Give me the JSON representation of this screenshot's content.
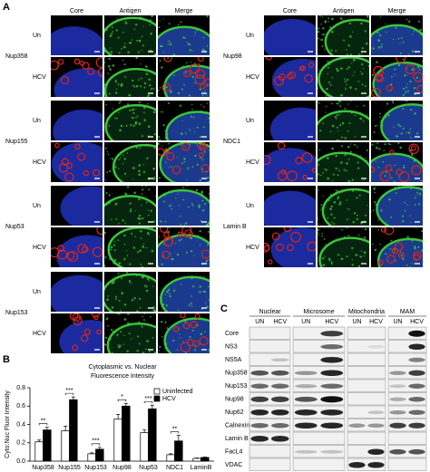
{
  "panel_labels": [
    "A",
    "B",
    "C"
  ],
  "panel_a": {
    "columns": [
      "Core",
      "Antigen",
      "Merge"
    ],
    "left": [
      {
        "name": "Nup358",
        "rows": [
          "Un",
          "HCV"
        ]
      },
      {
        "name": "Nup155",
        "rows": [
          "Un",
          "HCV"
        ]
      },
      {
        "name": "Nup53",
        "rows": [
          "Un",
          "HCV"
        ]
      },
      {
        "name": "Nup153",
        "rows": [
          "Un",
          "HCV"
        ]
      }
    ],
    "right": [
      {
        "name": "Nup98",
        "rows": [
          "Un",
          "HCV"
        ]
      },
      {
        "name": "NDC1",
        "rows": [
          "Un",
          "HCV"
        ]
      },
      {
        "name": "Lamin B",
        "rows": [
          "Un",
          "HCV"
        ]
      }
    ]
  },
  "chart_data": {
    "type": "bar",
    "title": [
      "Cytoplasmic vs. Nuclear",
      "Fluorescence Intensity"
    ],
    "y_label": "Cyto:Nuc Fluor Intensity",
    "categories": [
      "Nup358",
      "Nup155",
      "Nup153",
      "Nup98",
      "Nup53",
      "NDC1",
      "LaminB"
    ],
    "series": [
      {
        "name": "Uninfected",
        "color": "#ffffff",
        "values": [
          0.21,
          0.33,
          0.08,
          0.46,
          0.31,
          0.07,
          0.03
        ],
        "errors": [
          0.02,
          0.05,
          0.01,
          0.05,
          0.03,
          0.01,
          0.005
        ]
      },
      {
        "name": "HCV",
        "color": "#000000",
        "values": [
          0.34,
          0.67,
          0.13,
          0.6,
          0.57,
          0.22,
          0.04
        ],
        "errors": [
          0.03,
          0.03,
          0.02,
          0.03,
          0.04,
          0.06,
          0.005
        ]
      }
    ],
    "annotations": [
      "**",
      "***",
      "***",
      "*",
      "***",
      "**",
      null
    ],
    "ylim": [
      0,
      0.8
    ],
    "yticks": [
      {
        "value": 0,
        "label": "0.0"
      },
      0.2,
      0.4,
      0.6,
      0.8
    ],
    "legend": "upper right"
  },
  "panel_c": {
    "groups": [
      "Nuclear",
      "Microsome",
      "Mitochondria",
      "MAM"
    ],
    "lanes": [
      "UN",
      "HCV"
    ],
    "proteins": [
      "Core",
      "NS3",
      "NS5A",
      "Nup358",
      "Nup153",
      "Nup98",
      "Nup62",
      "Calnexin",
      "Lamin B",
      "FacL4",
      "VDAC"
    ]
  }
}
